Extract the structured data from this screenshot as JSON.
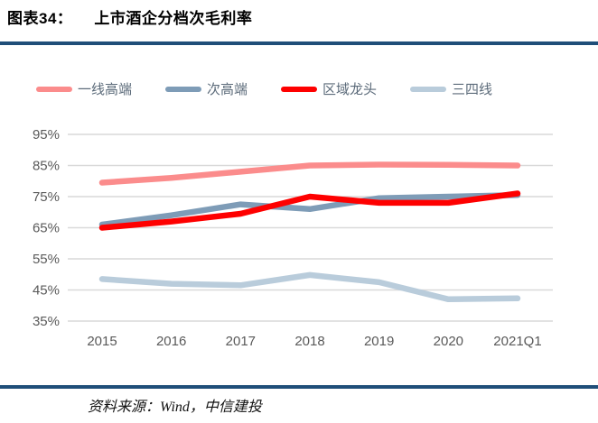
{
  "header": {
    "figure_label": "图表34：",
    "title": "上市酒企分档次毛利率"
  },
  "chart_data": {
    "type": "line",
    "categories": [
      "2015",
      "2016",
      "2017",
      "2018",
      "2019",
      "2020",
      "2021Q1"
    ],
    "series": [
      {
        "name": "一线高端",
        "color": "#FB8C8C",
        "values": [
          79.5,
          81.0,
          83.0,
          85.0,
          85.3,
          85.2,
          85.0
        ]
      },
      {
        "name": "次高端",
        "color": "#7E9CB7",
        "values": [
          66.0,
          69.0,
          72.5,
          71.0,
          74.5,
          75.0,
          75.5
        ]
      },
      {
        "name": "区域龙头",
        "color": "#FE0000",
        "values": [
          65.0,
          67.0,
          69.5,
          75.0,
          73.0,
          73.0,
          76.0
        ]
      },
      {
        "name": "三四线",
        "color": "#B9CCDB",
        "values": [
          48.5,
          47.0,
          46.5,
          49.8,
          47.5,
          42.0,
          42.3
        ]
      }
    ],
    "ylim": [
      35,
      95
    ],
    "ytick_step": 10,
    "ytick_labels": [
      "95%",
      "85%",
      "75%",
      "65%",
      "55%",
      "45%",
      "35%"
    ],
    "grid": "horizontal",
    "legend_position": "top",
    "title": "上市酒企分档次毛利率",
    "xlabel": "",
    "ylabel": ""
  },
  "footer": {
    "source": "资料来源：Wind，中信建投"
  },
  "colors": {
    "rule": "#1F4E79",
    "grid": "#D9D9D9",
    "axis_text": "#595959",
    "legend_text": "#5C6B7A"
  }
}
